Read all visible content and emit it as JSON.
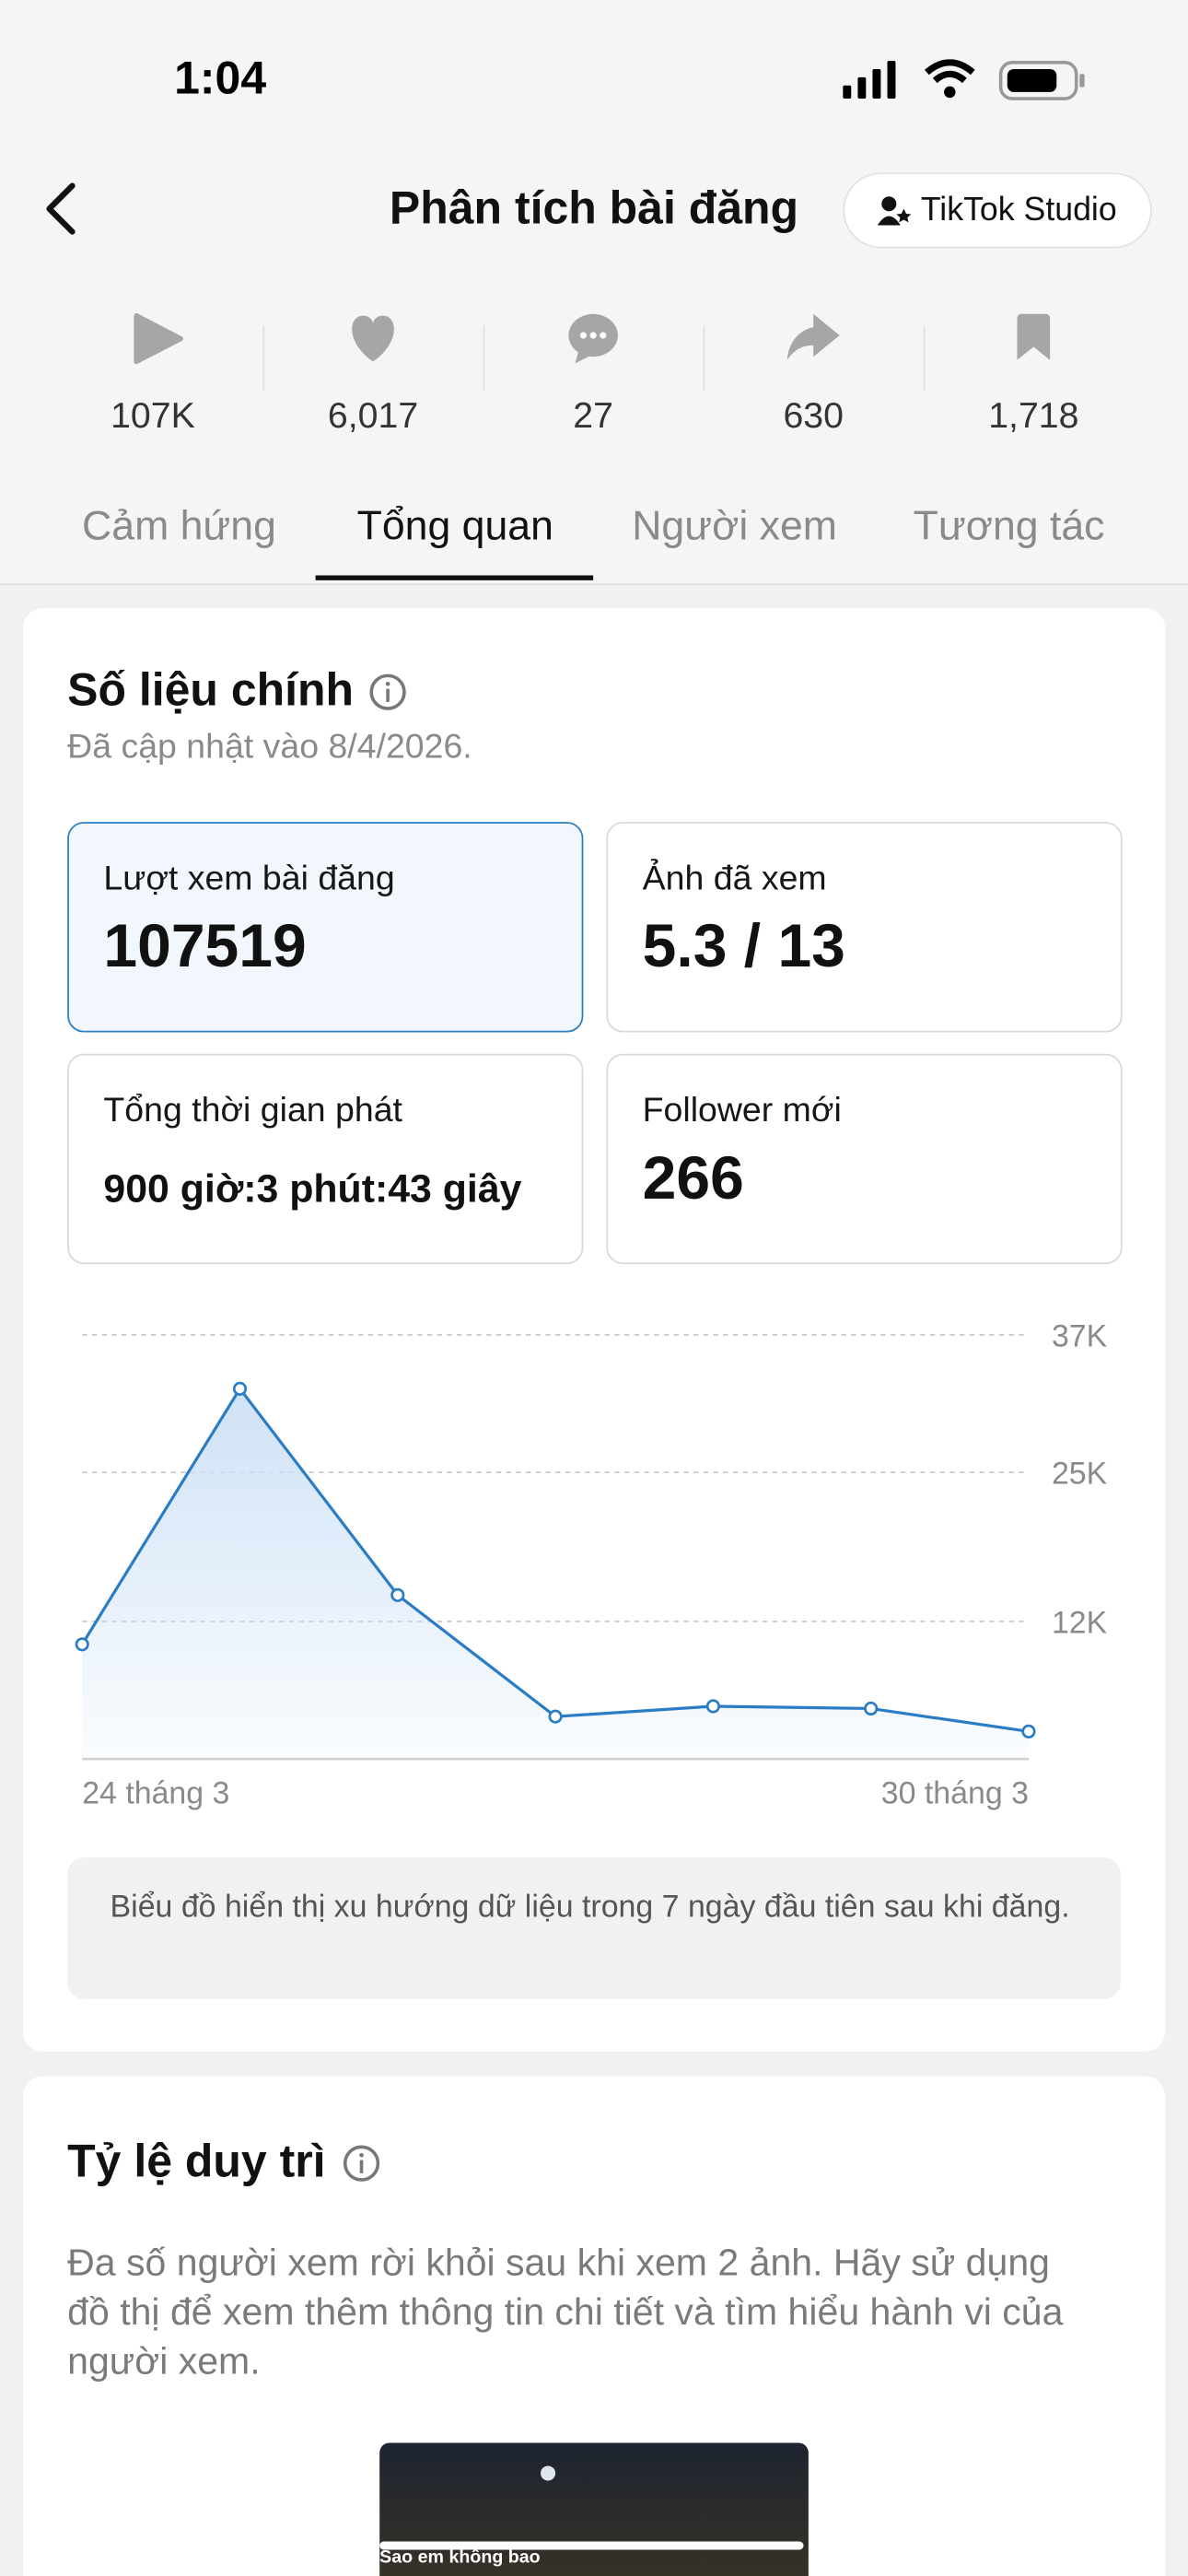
{
  "status_bar": {
    "time": "1:04"
  },
  "header": {
    "title": "Phân tích bài đăng",
    "studio_button": "TikTok Studio"
  },
  "stats": [
    "107K",
    "6,017",
    "27",
    "630",
    "1,718"
  ],
  "tabs": {
    "items": [
      "Cảm hứng",
      "Tổng quan",
      "Người xem",
      "Tương tác"
    ],
    "active": 1
  },
  "main_metrics": {
    "title": "Số liệu chính",
    "updated": "Đã cập nhật vào 8/4/2026.",
    "cards": [
      {
        "label": "Lượt xem bài đăng",
        "value": "107519"
      },
      {
        "label": "Ảnh đã xem",
        "value": "5.3 / 13"
      },
      {
        "label": "Tổng thời gian phát",
        "value": "900 giờ:3 phút:43 giây"
      },
      {
        "label": "Follower mới",
        "value": "266"
      }
    ],
    "note": "Biểu đồ hiển thị xu hướng dữ liệu trong 7 ngày đầu tiên sau khi đăng."
  },
  "chart_data": {
    "type": "line",
    "categories": [
      "24 tháng 3",
      null,
      null,
      null,
      null,
      null,
      "30 tháng 3"
    ],
    "values": [
      10000,
      32300,
      14300,
      3700,
      4600,
      4400,
      2400
    ],
    "color": "#2a7dc4",
    "ylim": [
      0,
      37000
    ],
    "yticks": [
      {
        "value": 12000,
        "label": "12K"
      },
      {
        "value": 25000,
        "label": "25K"
      },
      {
        "value": 37000,
        "label": "37K"
      }
    ],
    "grid": true
  },
  "retention": {
    "title": "Tỷ lệ duy trì",
    "description": "Đa số người xem rời khỏi sau khi xem 2 ảnh. Hãy sử dụng đồ thị để xem thêm thông tin chi tiết và tìm hiểu hành vi của người xem.",
    "thumbnail_caption": "Sao em không bao"
  }
}
